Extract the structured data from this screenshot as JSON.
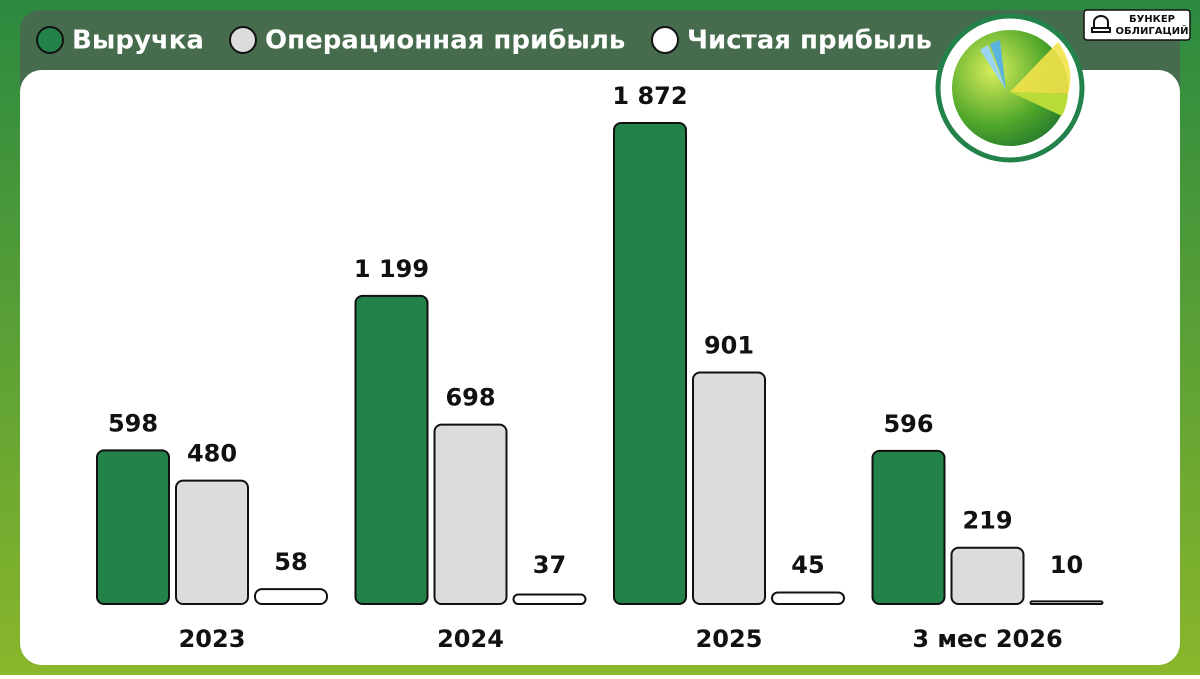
{
  "brand": {
    "line1": "БУНКЕР",
    "line2": "ОБЛИГАЦИЙ"
  },
  "chart_data": {
    "type": "bar",
    "categories": [
      "2023",
      "2024",
      "2025",
      "3 мес 2026"
    ],
    "series": [
      {
        "name": "Выручка",
        "color": "#23824a",
        "values": [
          598,
          1199,
          1872,
          596
        ],
        "value_labels": [
          "598",
          "1 199",
          "1 872",
          "596"
        ]
      },
      {
        "name": "Операционная прибыль",
        "color": "#dcdcdc",
        "values": [
          480,
          698,
          901,
          219
        ]
      },
      {
        "name": "Чистая прибыль",
        "color": "#ffffff",
        "values": [
          58,
          37,
          45,
          10
        ]
      }
    ]
  }
}
